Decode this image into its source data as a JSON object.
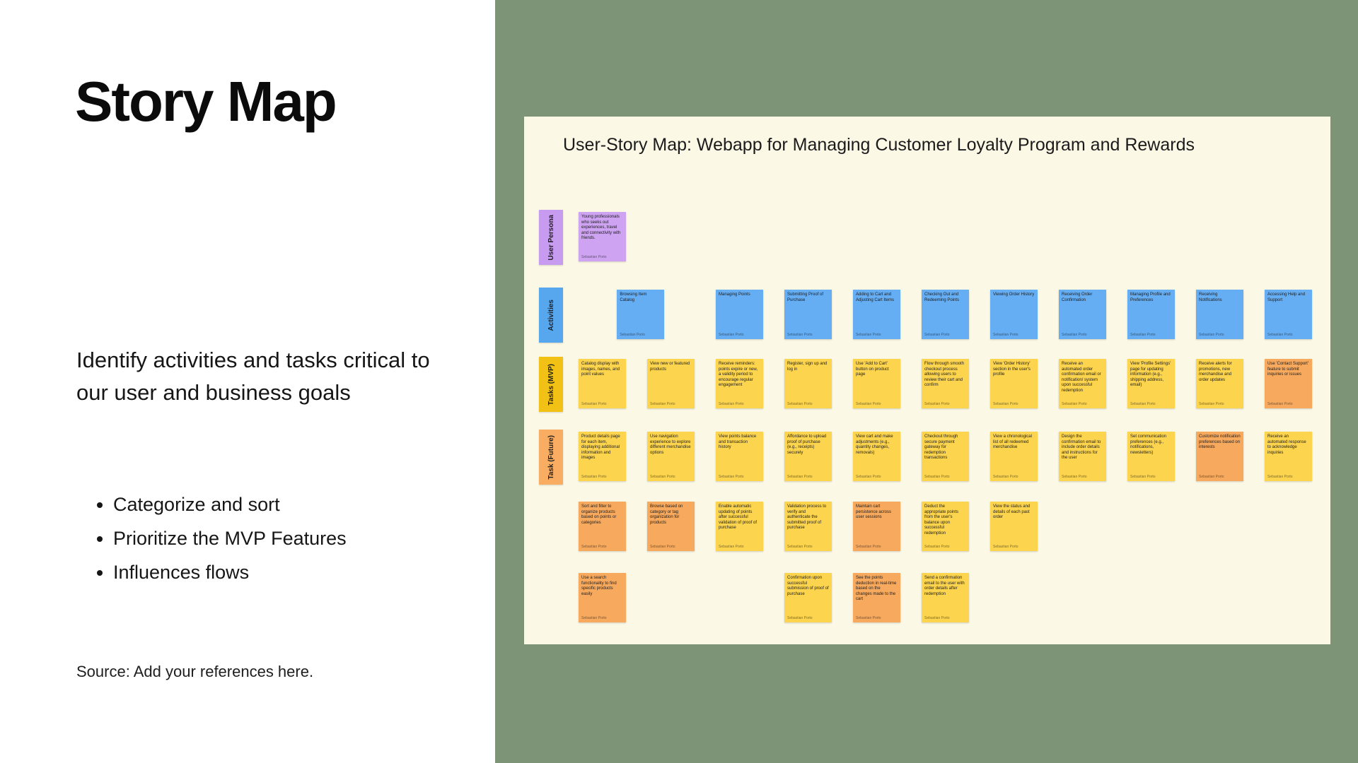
{
  "left_panel": {
    "title": "Story Map",
    "description": "Identify activities and tasks critical to our user and business goals",
    "bullets": [
      "Categorize and sort",
      "Prioritize the MVP Features",
      "Influences flows"
    ],
    "source": "Source: Add your references here."
  },
  "board": {
    "title": "User-Story Map: Webapp for Managing Customer Loyalty Program and Rewards",
    "author": "Sebastian Porto",
    "colors": {
      "canvas_green": "#7E9477",
      "board_cream": "#FCF8E6",
      "purple": "#CDA3F2",
      "blue": "#66AEF3",
      "yellow": "#FCD44E",
      "orange": "#F7A95E"
    },
    "row_labels": [
      {
        "row": 0,
        "text": "User Persona",
        "color": "#C79BF0"
      },
      {
        "row": 1,
        "text": "Activities",
        "color": "#57A7EF"
      },
      {
        "row": 2,
        "text": "Tasks (MVP)",
        "color": "#F1C116"
      },
      {
        "row": 3,
        "text": "Task (Future)",
        "color": "#F8AD62"
      }
    ],
    "notes": [
      {
        "r": 0,
        "c": 0,
        "color": "purple",
        "text": "Young professionals who seeks out experiences, travel and connectivity with friends."
      },
      {
        "r": 1,
        "c": 0.56,
        "color": "blue",
        "text": "Browsing Item Catalog"
      },
      {
        "r": 1,
        "c": 2,
        "color": "blue",
        "text": "Managing Points"
      },
      {
        "r": 1,
        "c": 3,
        "color": "blue",
        "text": "Submitting Proof of Purchase"
      },
      {
        "r": 1,
        "c": 4,
        "color": "blue",
        "text": "Adding to Cart and Adjusting Cart Items"
      },
      {
        "r": 1,
        "c": 5,
        "color": "blue",
        "text": "Checking Out and Redeeming Points"
      },
      {
        "r": 1,
        "c": 6,
        "color": "blue",
        "text": "Viewing Order History"
      },
      {
        "r": 1,
        "c": 7,
        "color": "blue",
        "text": "Receiving Order Confirmation"
      },
      {
        "r": 1,
        "c": 8,
        "color": "blue",
        "text": "Managing Profile and Preferences"
      },
      {
        "r": 1,
        "c": 9,
        "color": "blue",
        "text": "Receiving Notifications"
      },
      {
        "r": 1,
        "c": 10,
        "color": "blue",
        "text": "Accessing Help and Support"
      },
      {
        "r": 2,
        "c": 0,
        "color": "yellow",
        "text": "Catalog display with images, names, and point values"
      },
      {
        "r": 2,
        "c": 1,
        "color": "yellow",
        "text": "View new or featured products"
      },
      {
        "r": 2,
        "c": 2,
        "color": "yellow",
        "text": "Receive reminders: points expire or new, a validity period to encourage regular engagement"
      },
      {
        "r": 2,
        "c": 3,
        "color": "yellow",
        "text": "Register, sign up and log in"
      },
      {
        "r": 2,
        "c": 4,
        "color": "yellow",
        "text": "Use 'Add to Cart' button on product page"
      },
      {
        "r": 2,
        "c": 5,
        "color": "yellow",
        "text": "Flow through smooth checkout process allowing users to review their cart and confirm"
      },
      {
        "r": 2,
        "c": 6,
        "color": "yellow",
        "text": "View 'Order History' section in the user's profile"
      },
      {
        "r": 2,
        "c": 7,
        "color": "yellow",
        "text": "Receive an automated order confirmation email or notification/ system upon successful redemption"
      },
      {
        "r": 2,
        "c": 8,
        "color": "yellow",
        "text": "View 'Profile Settings' page for updating information (e.g., shipping address, email)"
      },
      {
        "r": 2,
        "c": 9,
        "color": "yellow",
        "text": "Receive alerts for promotions, new merchandise and order updates"
      },
      {
        "r": 2,
        "c": 10,
        "color": "orange",
        "text": "Use 'Contact Support' feature to submit inquiries or issues"
      },
      {
        "r": 3,
        "c": 0,
        "color": "yellow",
        "text": "Product details page for each item, displaying additional information and images"
      },
      {
        "r": 3,
        "c": 1,
        "color": "yellow",
        "text": "Use navigation experience to explore different merchandise options"
      },
      {
        "r": 3,
        "c": 2,
        "color": "yellow",
        "text": "View points balance and transaction history"
      },
      {
        "r": 3,
        "c": 3,
        "color": "yellow",
        "text": "Affordance to upload proof of purchase (e.g., receipts) securely"
      },
      {
        "r": 3,
        "c": 4,
        "color": "yellow",
        "text": "View cart and make adjustments (e.g., quantity changes, removals)"
      },
      {
        "r": 3,
        "c": 5,
        "color": "yellow",
        "text": "Checkout through secure payment gateway for redemption transactions"
      },
      {
        "r": 3,
        "c": 6,
        "color": "yellow",
        "text": "View a chronological list of all redeemed merchandise"
      },
      {
        "r": 3,
        "c": 7,
        "color": "yellow",
        "text": "Design the confirmation email to include order details and instructions for the user"
      },
      {
        "r": 3,
        "c": 8,
        "color": "yellow",
        "text": "Set communication preferences (e.g., notifications, newsletters)"
      },
      {
        "r": 3,
        "c": 9,
        "color": "orange",
        "text": "Customize notification preferences based on interests"
      },
      {
        "r": 3,
        "c": 10,
        "color": "yellow",
        "text": "Receive an automated response to acknowledge inquiries"
      },
      {
        "r": 4,
        "c": 0,
        "color": "orange",
        "text": "Sort and filter to organize products based on points or categories"
      },
      {
        "r": 4,
        "c": 1,
        "color": "orange",
        "text": "Browse based on category or tag organization for products"
      },
      {
        "r": 4,
        "c": 2,
        "color": "yellow",
        "text": "Enable automatic updating of points after successful validation of proof of purchase"
      },
      {
        "r": 4,
        "c": 3,
        "color": "yellow",
        "text": "Validation process to verify and authenticate the submitted proof of purchase"
      },
      {
        "r": 4,
        "c": 4,
        "color": "orange",
        "text": "Maintain cart persistence across user sessions"
      },
      {
        "r": 4,
        "c": 5,
        "color": "yellow",
        "text": "Deduct the appropriate points from the user's balance upon successful redemption"
      },
      {
        "r": 4,
        "c": 6,
        "color": "yellow",
        "text": "View the status and details of each past order"
      },
      {
        "r": 5,
        "c": 0,
        "color": "orange",
        "text": "Use a search functionality to find specific products easily"
      },
      {
        "r": 5,
        "c": 3,
        "color": "yellow",
        "text": "Confirmation upon successful submission of proof of purchase"
      },
      {
        "r": 5,
        "c": 4,
        "color": "orange",
        "text": "See the points deduction in real-time based on the changes made to the cart"
      },
      {
        "r": 5,
        "c": 5,
        "color": "yellow",
        "text": "Send a confirmation email to the user with order details after redemption"
      }
    ]
  }
}
